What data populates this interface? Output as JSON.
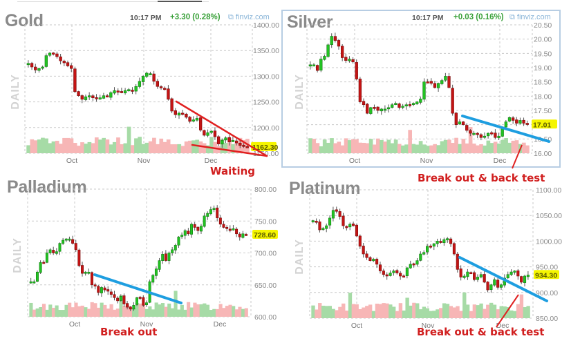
{
  "header": {
    "time": "10:17 PM",
    "brand": "finviz.com"
  },
  "panels": [
    {
      "name": "Gold",
      "change": "+3.30 (0.28%)",
      "axis_label": "DAILY",
      "last": "1162.30",
      "annotation": "Waiting"
    },
    {
      "name": "Silver",
      "change": "+0.03 (0.16%)",
      "axis_label": "DAILY",
      "last": "17.01",
      "annotation": "Break out & back test"
    },
    {
      "name": "Palladium",
      "axis_label": "DAILY",
      "last": "728.60",
      "annotation": "Break out"
    },
    {
      "name": "Platinum",
      "axis_label": "DAILY",
      "last": "934.30",
      "annotation": "Break out & back test"
    }
  ],
  "colors": {
    "up": "#22c322",
    "down": "#c41414",
    "vol_up": "#a6dba6",
    "vol_down": "#f7b6b6",
    "trend_blue": "#1e9ee0",
    "trend_red": "#e02020",
    "last_bg": "#f5f500",
    "grid": "#c9c9c9"
  },
  "chart_data": [
    {
      "type": "candlestick",
      "title": "Gold",
      "subtitle": "10:17 PM +3.30 (0.28%)",
      "ylabel": "DAILY",
      "x_ticks": [
        "Oct",
        "Nov",
        "Dec"
      ],
      "y_ticks": [
        1150,
        1200,
        1250,
        1300,
        1350,
        1400
      ],
      "ylim": [
        1150,
        1400
      ],
      "last_price": 1162.3,
      "grid": true,
      "closes_approx": [
        1325,
        1318,
        1312,
        1315,
        1318,
        1340,
        1345,
        1344,
        1338,
        1330,
        1326,
        1320,
        1315,
        1270,
        1262,
        1255,
        1260,
        1262,
        1258,
        1256,
        1258,
        1262,
        1260,
        1268,
        1272,
        1270,
        1268,
        1272,
        1274,
        1272,
        1280,
        1290,
        1300,
        1306,
        1305,
        1290,
        1280,
        1277,
        1275,
        1255,
        1232,
        1225,
        1228,
        1226,
        1220,
        1212,
        1215,
        1218,
        1195,
        1185,
        1190,
        1193,
        1182,
        1168,
        1175,
        1180,
        1172,
        1175,
        1170,
        1165,
        1163,
        1162
      ],
      "annotations": [
        {
          "type": "trendline",
          "color": "red",
          "desc": "falling upper resistance"
        },
        {
          "type": "trendline",
          "color": "red",
          "desc": "flat lower support"
        },
        {
          "type": "text",
          "text": "Waiting"
        }
      ]
    },
    {
      "type": "candlestick",
      "title": "Silver",
      "subtitle": "10:17 PM +0.03 (0.16%)",
      "ylabel": "DAILY",
      "x_ticks": [
        "Oct",
        "Nov",
        "Dec"
      ],
      "y_ticks": [
        16.0,
        16.5,
        17.0,
        17.5,
        18.0,
        18.5,
        19.0,
        19.5,
        20.0,
        20.5
      ],
      "ylim": [
        16.0,
        20.5
      ],
      "last_price": 17.01,
      "grid": true,
      "closes_approx": [
        19.1,
        19.1,
        18.9,
        19.3,
        19.4,
        19.8,
        20.1,
        19.95,
        19.75,
        19.35,
        19.25,
        19.3,
        19.2,
        18.6,
        17.8,
        17.7,
        17.4,
        17.6,
        17.6,
        17.5,
        17.55,
        17.55,
        17.6,
        17.7,
        17.75,
        17.6,
        17.65,
        17.7,
        17.7,
        17.75,
        17.8,
        17.9,
        18.5,
        18.5,
        18.45,
        18.3,
        18.45,
        18.55,
        18.7,
        18.3,
        17.4,
        17.0,
        17.1,
        17.0,
        16.8,
        16.7,
        16.7,
        16.65,
        16.55,
        16.6,
        16.7,
        16.7,
        16.55,
        16.6,
        16.9,
        17.1,
        17.25,
        17.15,
        17.05,
        17.15,
        17.05,
        17.01
      ],
      "annotations": [
        {
          "type": "trendline",
          "color": "blue",
          "desc": "falling resistance, broken and back-tested"
        },
        {
          "type": "text",
          "text": "Break out & back test"
        }
      ]
    },
    {
      "type": "candlestick",
      "title": "Palladium",
      "ylabel": "DAILY",
      "x_ticks": [
        "Oct",
        "Nov",
        "Dec"
      ],
      "y_ticks": [
        600,
        650,
        700,
        750,
        800
      ],
      "ylim": [
        600,
        800
      ],
      "last_price": 728.6,
      "grid": true,
      "closes_approx": [
        655,
        655,
        670,
        685,
        685,
        700,
        705,
        700,
        702,
        715,
        720,
        722,
        722,
        715,
        705,
        680,
        668,
        670,
        670,
        650,
        648,
        638,
        646,
        642,
        640,
        635,
        630,
        625,
        632,
        620,
        615,
        612,
        618,
        630,
        630,
        618,
        622,
        655,
        665,
        675,
        688,
        698,
        688,
        700,
        705,
        712,
        725,
        728,
        735,
        730,
        745,
        740,
        735,
        742,
        758,
        762,
        768,
        770,
        755,
        745,
        740,
        738,
        735,
        738,
        730,
        725,
        730,
        728
      ],
      "annotations": [
        {
          "type": "trendline",
          "color": "blue",
          "desc": "falling resistance broken upward"
        },
        {
          "type": "text",
          "text": "Break out"
        }
      ]
    },
    {
      "type": "candlestick",
      "title": "Platinum",
      "ylabel": "DAILY",
      "x_ticks": [
        "Oct",
        "Nov",
        "Dec"
      ],
      "y_ticks": [
        850,
        900,
        950,
        1000,
        1050,
        1100
      ],
      "ylim": [
        850,
        1100
      ],
      "last_price": 934.3,
      "grid": true,
      "closes_approx": [
        1040,
        1038,
        1022,
        1025,
        1030,
        1045,
        1060,
        1058,
        1048,
        1030,
        1028,
        1033,
        1030,
        1010,
        990,
        975,
        968,
        962,
        965,
        955,
        942,
        935,
        932,
        938,
        942,
        938,
        932,
        932,
        948,
        955,
        955,
        962,
        975,
        978,
        990,
        990,
        995,
        1000,
        998,
        1003,
        1005,
        995,
        975,
        945,
        930,
        932,
        940,
        938,
        925,
        930,
        935,
        920,
        905,
        915,
        925,
        910,
        915,
        928,
        935,
        940,
        942,
        932,
        920,
        932,
        934
      ],
      "annotations": [
        {
          "type": "trendline",
          "color": "blue",
          "desc": "falling resistance, broken and back-tested"
        },
        {
          "type": "text",
          "text": "Break out & back test"
        }
      ]
    }
  ]
}
